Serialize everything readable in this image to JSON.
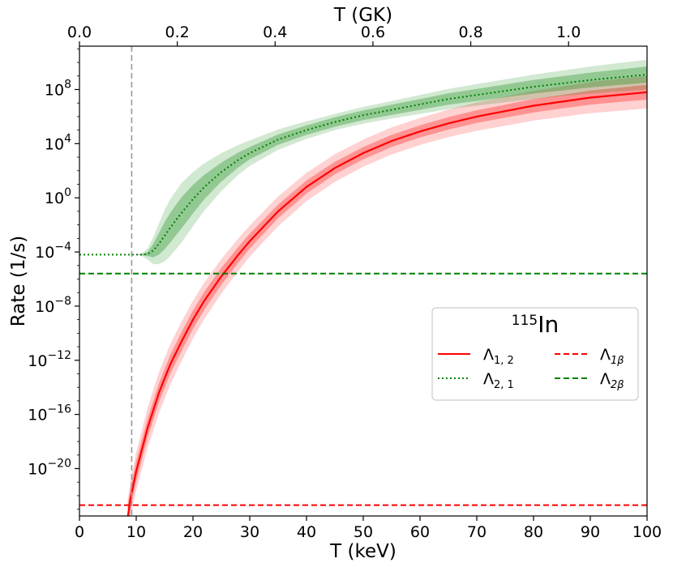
{
  "chart_data": {
    "type": "line",
    "isotope": {
      "mass": "115",
      "symbol": "In"
    },
    "xlabel": "T (keV)",
    "ylabel": "Rate (1/s)",
    "top_xlabel": "T (GK)",
    "xlim": [
      0,
      100
    ],
    "ylim_log10": [
      -23.5,
      11.2
    ],
    "x_ticks": [
      0,
      10,
      20,
      30,
      40,
      50,
      60,
      70,
      80,
      90,
      100
    ],
    "top_ticks_GK": [
      "0.0",
      "0.2",
      "0.4",
      "0.6",
      "0.8",
      "1.0"
    ],
    "y_ticks_exponents": [
      -20,
      -16,
      -12,
      -8,
      -4,
      0,
      4,
      8
    ],
    "y_tick_base": "10",
    "vline_x_keV": 9.2,
    "legend_position": "center-right",
    "series": [
      {
        "key": "L12",
        "name": "Λ1,2",
        "base": "Λ",
        "sub": "1, 2",
        "color": "#ff0000",
        "style": "solid",
        "x": [
          8.5,
          9,
          10,
          12,
          14,
          16,
          18,
          20,
          22,
          25,
          28,
          30,
          35,
          40,
          45,
          50,
          55,
          60,
          65,
          70,
          75,
          80,
          85,
          90,
          95,
          100
        ],
        "log10_y": [
          -23.6,
          -22.2,
          -20.2,
          -17.0,
          -14.4,
          -12.3,
          -10.6,
          -9.0,
          -7.6,
          -5.8,
          -4.2,
          -3.2,
          -1.0,
          0.8,
          2.2,
          3.3,
          4.2,
          4.9,
          5.5,
          6.0,
          6.4,
          6.8,
          7.1,
          7.4,
          7.6,
          7.8
        ],
        "band_inner_halfwidth": [
          0.9,
          0.8,
          0.75,
          0.7,
          0.7,
          0.7,
          0.7,
          0.68,
          0.66,
          0.62,
          0.58,
          0.55,
          0.5,
          0.48,
          0.46,
          0.45,
          0.45,
          0.45,
          0.46,
          0.47,
          0.48,
          0.5,
          0.5,
          0.52,
          0.53,
          0.55
        ],
        "band_outer_halfwidth": [
          1.3,
          1.3,
          1.4,
          1.5,
          1.5,
          1.5,
          1.45,
          1.4,
          1.35,
          1.28,
          1.2,
          1.15,
          1.1,
          1.05,
          1.02,
          1.0,
          1.0,
          1.0,
          1.02,
          1.05,
          1.08,
          1.1,
          1.12,
          1.15,
          1.18,
          1.2
        ]
      },
      {
        "key": "L21",
        "name": "Λ2,1",
        "base": "Λ",
        "sub": "2, 1",
        "color": "#008000",
        "style": "dotted",
        "x": [
          0,
          5,
          9,
          10,
          11,
          12,
          13,
          14,
          15,
          16,
          18,
          20,
          22,
          25,
          28,
          30,
          35,
          40,
          45,
          50,
          55,
          60,
          65,
          70,
          75,
          80,
          85,
          90,
          95,
          100
        ],
        "log10_y": [
          -4.2,
          -4.2,
          -4.2,
          -4.2,
          -4.2,
          -4.15,
          -3.9,
          -3.4,
          -2.8,
          -2.2,
          -1.1,
          -0.1,
          0.8,
          1.9,
          2.8,
          3.3,
          4.3,
          5.0,
          5.6,
          6.1,
          6.5,
          6.9,
          7.3,
          7.6,
          7.9,
          8.2,
          8.45,
          8.7,
          8.9,
          9.1
        ],
        "band_inner_halfwidth": [
          0,
          0,
          0,
          0,
          0.05,
          0.15,
          0.5,
          0.8,
          1.0,
          1.1,
          1.15,
          1.05,
          0.9,
          0.7,
          0.55,
          0.45,
          0.38,
          0.35,
          0.35,
          0.36,
          0.38,
          0.4,
          0.42,
          0.45,
          0.47,
          0.5,
          0.52,
          0.55,
          0.57,
          0.6
        ],
        "band_outer_halfwidth": [
          0,
          0,
          0,
          0,
          0.1,
          0.4,
          1.0,
          1.5,
          1.9,
          2.1,
          2.2,
          2.0,
          1.75,
          1.4,
          1.1,
          0.95,
          0.75,
          0.65,
          0.6,
          0.62,
          0.65,
          0.7,
          0.75,
          0.8,
          0.85,
          0.9,
          0.95,
          1.0,
          1.05,
          1.1
        ]
      },
      {
        "key": "L1b",
        "name": "Λ1β",
        "base": "Λ",
        "sub": "1β",
        "color": "#ff0000",
        "style": "dashed",
        "x": [
          0,
          100
        ],
        "log10_y": [
          -22.7,
          -22.7
        ]
      },
      {
        "key": "L2b",
        "name": "Λ2β",
        "base": "Λ",
        "sub": "2β",
        "color": "#008000",
        "style": "dashed",
        "x": [
          0,
          100
        ],
        "log10_y": [
          -5.6,
          -5.6
        ]
      }
    ]
  }
}
